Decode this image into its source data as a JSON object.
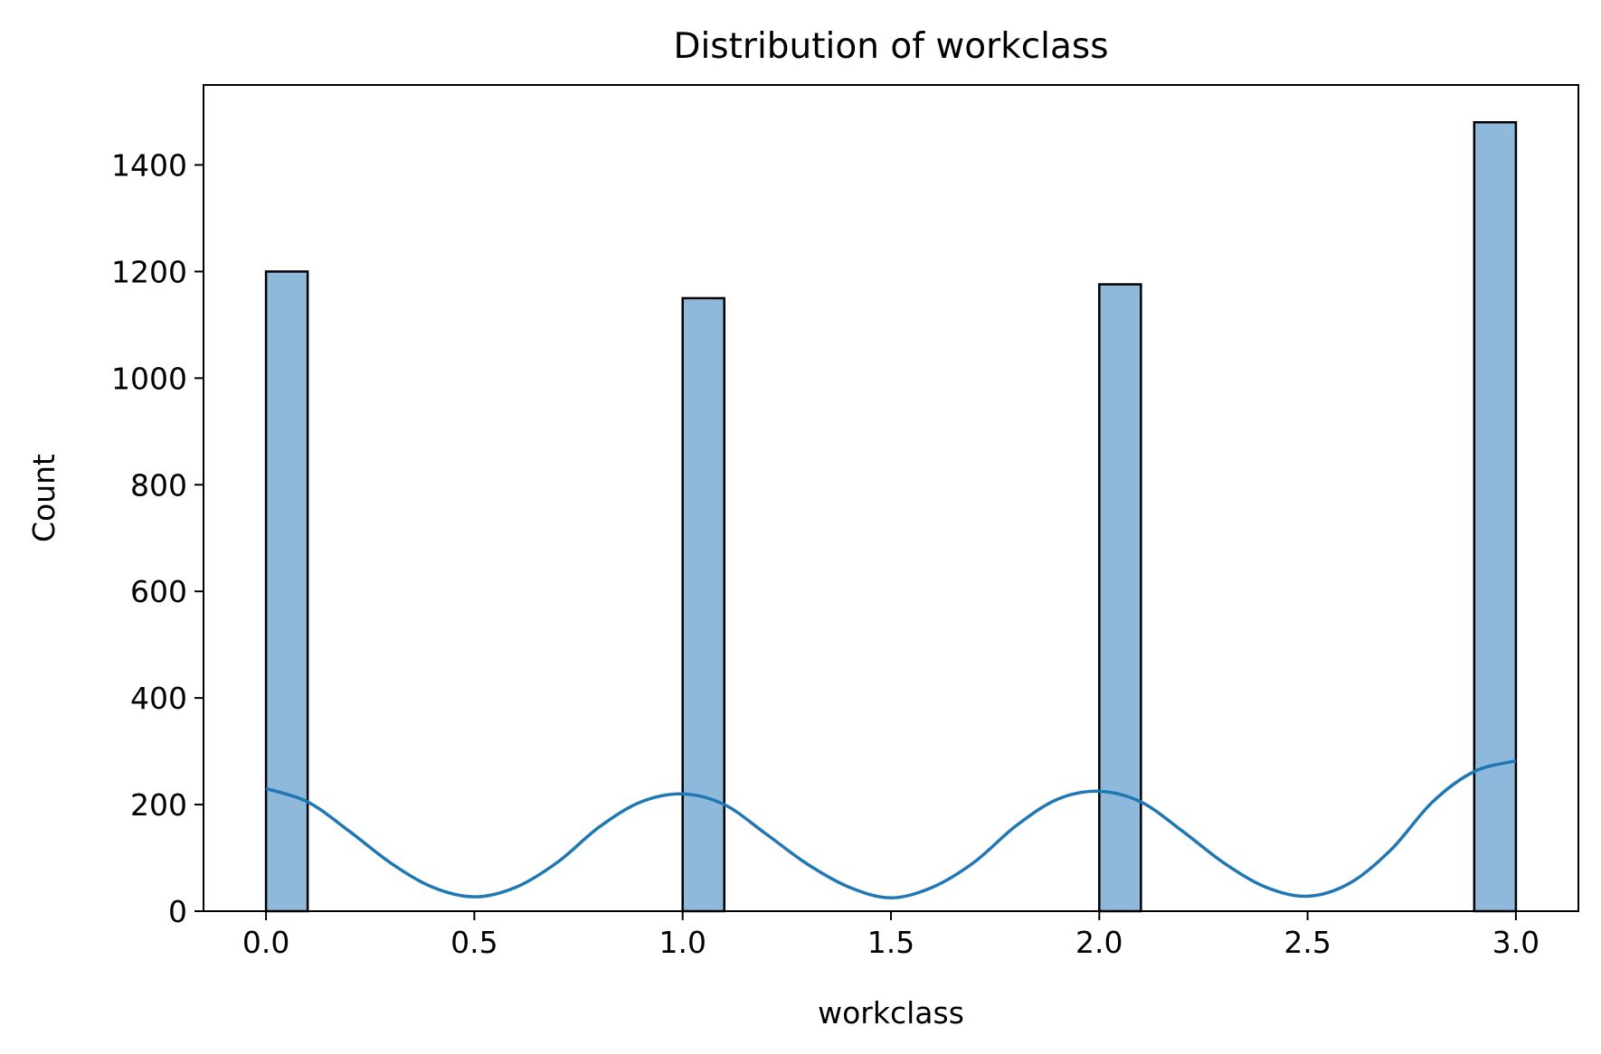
{
  "chart_data": {
    "type": "histogram",
    "title": "Distribution of workclass",
    "xlabel": "workclass",
    "ylabel": "Count",
    "xlim": [
      -0.15,
      3.15
    ],
    "ylim": [
      0,
      1550
    ],
    "x_ticks": [
      0.0,
      0.5,
      1.0,
      1.5,
      2.0,
      2.5,
      3.0
    ],
    "x_tick_labels": [
      "0.0",
      "0.5",
      "1.0",
      "1.5",
      "2.0",
      "2.5",
      "3.0"
    ],
    "y_ticks": [
      0,
      200,
      400,
      600,
      800,
      1000,
      1200,
      1400
    ],
    "y_tick_labels": [
      "0",
      "200",
      "400",
      "600",
      "800",
      "1000",
      "1200",
      "1400"
    ],
    "bars": [
      {
        "x0": 0.0,
        "x1": 0.1,
        "value": 1200
      },
      {
        "x0": 1.0,
        "x1": 1.1,
        "value": 1150
      },
      {
        "x0": 2.0,
        "x1": 2.1,
        "value": 1176
      },
      {
        "x0": 2.9,
        "x1": 3.0,
        "value": 1480
      }
    ],
    "kde": {
      "x": [
        0.0,
        0.1,
        0.2,
        0.3,
        0.4,
        0.5,
        0.6,
        0.7,
        0.8,
        0.9,
        1.0,
        1.1,
        1.2,
        1.3,
        1.4,
        1.5,
        1.6,
        1.7,
        1.8,
        1.9,
        2.0,
        2.1,
        2.2,
        2.3,
        2.4,
        2.5,
        2.6,
        2.7,
        2.8,
        2.9,
        3.0
      ],
      "y": [
        230,
        205,
        150,
        90,
        45,
        27,
        45,
        92,
        158,
        205,
        220,
        200,
        145,
        88,
        45,
        25,
        45,
        92,
        160,
        210,
        225,
        205,
        150,
        90,
        45,
        28,
        52,
        115,
        205,
        262,
        282
      ]
    },
    "grid": false,
    "colors": {
      "bar_fill": "#8fb9da",
      "bar_edge": "#000000",
      "kde_line": "#1f77b4"
    }
  }
}
